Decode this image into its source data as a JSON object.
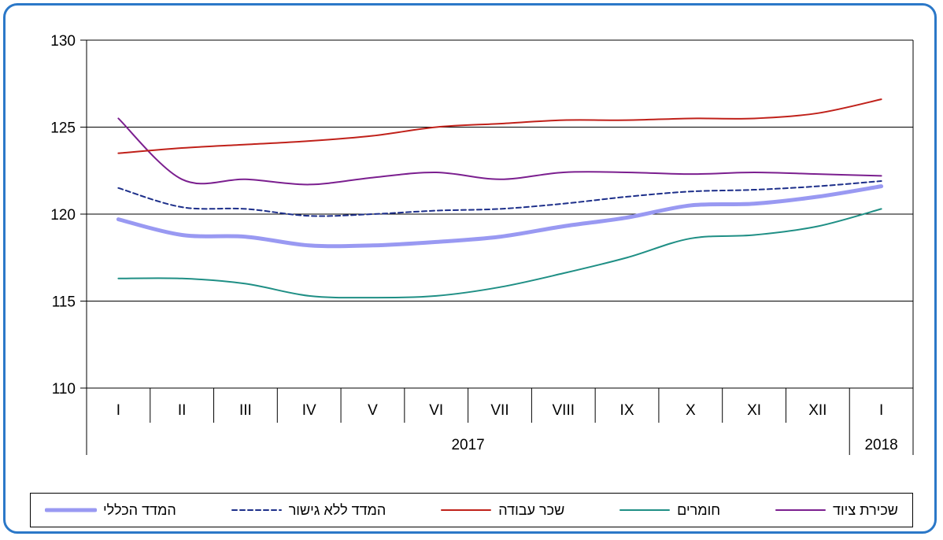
{
  "chart_data": {
    "type": "line",
    "categories": [
      "I",
      "II",
      "III",
      "IV",
      "V",
      "VI",
      "VII",
      "VIII",
      "IX",
      "X",
      "XI",
      "XII",
      "I"
    ],
    "year_labels": [
      "2017",
      "2018"
    ],
    "ylim": [
      110,
      130
    ],
    "yticks": [
      "110",
      "115",
      "120",
      "125",
      "130"
    ],
    "grid": true,
    "legend_position": "bottom",
    "series": [
      {
        "name": "שכירת ציוד",
        "color": "#7b1f8f",
        "style": "solid",
        "width": 2,
        "values": [
          125.5,
          122.0,
          122.0,
          121.7,
          122.1,
          122.4,
          122.0,
          122.4,
          122.4,
          122.3,
          122.4,
          122.3,
          122.2
        ]
      },
      {
        "name": "חומרים",
        "color": "#1f8f85",
        "style": "solid",
        "width": 2,
        "values": [
          116.3,
          116.3,
          116.0,
          115.3,
          115.2,
          115.3,
          115.8,
          116.6,
          117.5,
          118.6,
          118.8,
          119.3,
          120.3
        ]
      },
      {
        "name": "שכר עבודה",
        "color": "#c0211a",
        "style": "solid",
        "width": 2,
        "values": [
          123.5,
          123.8,
          124.0,
          124.2,
          124.5,
          125.0,
          125.2,
          125.4,
          125.4,
          125.5,
          125.5,
          125.8,
          126.6
        ]
      },
      {
        "name": "המדד ללא גישור",
        "color": "#1d2f8a",
        "style": "dashed",
        "width": 2,
        "values": [
          121.5,
          120.4,
          120.3,
          119.9,
          120.0,
          120.2,
          120.3,
          120.6,
          121.0,
          121.3,
          121.4,
          121.6,
          121.9
        ]
      },
      {
        "name": "המדד הכללי",
        "color": "#9999f2",
        "style": "solid",
        "width": 5,
        "values": [
          119.7,
          118.8,
          118.7,
          118.2,
          118.2,
          118.4,
          118.7,
          119.3,
          119.8,
          120.5,
          120.6,
          121.0,
          121.6
        ]
      }
    ]
  }
}
